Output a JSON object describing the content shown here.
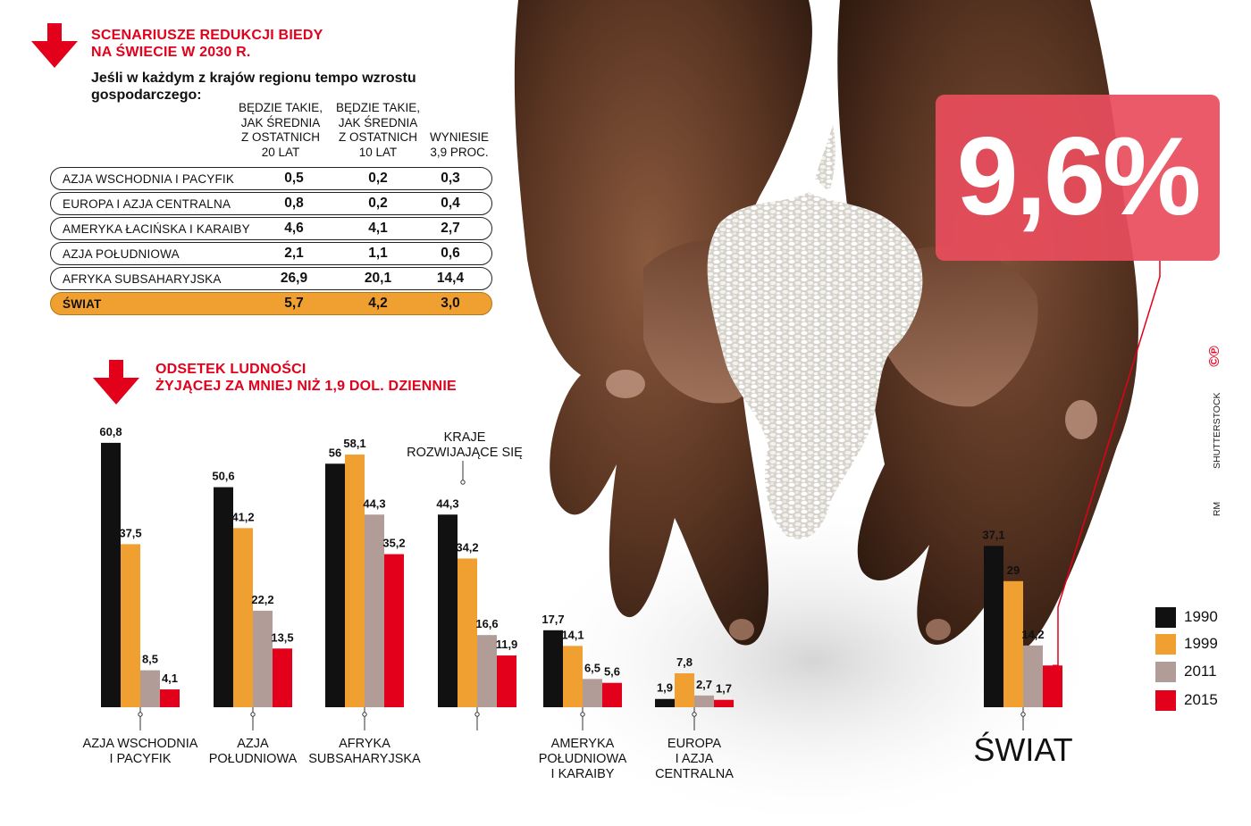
{
  "scenario": {
    "title": [
      "SCENARIUSZE REDUKCJI BIEDY",
      "NA ŚWIECIE W 2030 R."
    ],
    "intro": "Jeśli w każdym z krajów regionu tempo wzrostu gospodarczego:",
    "columns": [
      [
        "BĘDZIE TAKIE,",
        "JAK ŚREDNIA",
        "Z OSTATNICH",
        "20 LAT"
      ],
      [
        "BĘDZIE TAKIE,",
        "JAK ŚREDNIA",
        "Z OSTATNICH",
        "10 LAT"
      ],
      [
        "WYNIESIE",
        "3,9 PROC."
      ]
    ],
    "rows": [
      {
        "label": "AZJA WSCHODNIA I PACYFIK",
        "v": [
          "0,5",
          "0,2",
          "0,3"
        ]
      },
      {
        "label": "EUROPA I AZJA CENTRALNA",
        "v": [
          "0,8",
          "0,2",
          "0,4"
        ]
      },
      {
        "label": "AMERYKA ŁACIŃSKA I KARAIBY",
        "v": [
          "4,6",
          "4,1",
          "2,7"
        ]
      },
      {
        "label": "AZJA POŁUDNIOWA",
        "v": [
          "2,1",
          "1,1",
          "0,6"
        ]
      },
      {
        "label": "AFRYKA SUBSAHARYJSKA",
        "v": [
          "26,9",
          "20,1",
          "14,4"
        ]
      },
      {
        "label": "ŚWIAT",
        "v": [
          "5,7",
          "4,2",
          "3,0"
        ]
      }
    ]
  },
  "big_number": "9,6%",
  "credits": {
    "copyright": "©℗",
    "source": "SHUTTERSTOCK",
    "author": "RM"
  },
  "colors": {
    "1990": "#111111",
    "1999": "#f0a030",
    "2011": "#b19c97",
    "2015": "#e3001b",
    "accent": "#e3001b"
  },
  "chart_data": {
    "type": "bar",
    "title": [
      "ODSETEK LUDNOŚCI",
      "ŻYJĄCEJ ZA MNIEJ NIŻ 1,9 DOL. DZIENNIE"
    ],
    "unit": "%",
    "legend": [
      "1990",
      "1999",
      "2011",
      "2015"
    ],
    "legend_position": "bottom-right",
    "ylim": [
      0,
      65
    ],
    "developing_label": [
      "KRAJE",
      "ROZWIJAJĄCE SIĘ"
    ],
    "groups": [
      {
        "name": [
          "AZJA WSCHODNIA",
          "I PACYFIK"
        ],
        "values": [
          60.8,
          37.5,
          8.5,
          4.1
        ],
        "labels": [
          "60,8",
          "37,5",
          "8,5",
          "4,1"
        ]
      },
      {
        "name": [
          "AZJA",
          "POŁUDNIOWA"
        ],
        "values": [
          50.6,
          41.2,
          22.2,
          13.5
        ],
        "labels": [
          "50,6",
          "41,2",
          "22,2",
          "13,5"
        ]
      },
      {
        "name": [
          "AFRYKA",
          "SUBSAHARYJSKA"
        ],
        "values": [
          56,
          58.1,
          44.3,
          35.2
        ],
        "labels": [
          "56",
          "58,1",
          "44,3",
          "35,2"
        ]
      },
      {
        "name": [],
        "values": [
          44.3,
          34.2,
          16.6,
          11.9
        ],
        "labels": [
          "44,3",
          "34,2",
          "16,6",
          "11,9"
        ]
      },
      {
        "name": [
          "AMERYKA",
          "POŁUDNIOWA",
          "I KARAIBY"
        ],
        "values": [
          17.7,
          14.1,
          6.5,
          5.6
        ],
        "labels": [
          "17,7",
          "14,1",
          "6,5",
          "5,6"
        ]
      },
      {
        "name": [
          "EUROPA",
          "I AZJA",
          "CENTRALNA"
        ],
        "values": [
          1.9,
          7.8,
          2.7,
          1.7
        ],
        "labels": [
          "1,9",
          "7,8",
          "2,7",
          "1,7"
        ]
      },
      {
        "name": [
          "ŚWIAT"
        ],
        "values": [
          37.1,
          29,
          14.2,
          9.6
        ],
        "labels": [
          "37,1",
          "29",
          "14,2",
          ""
        ]
      }
    ]
  }
}
